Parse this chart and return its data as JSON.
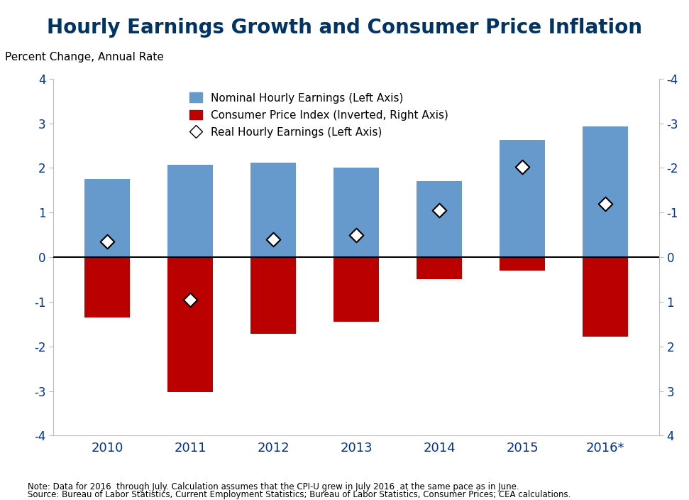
{
  "title": "Hourly Earnings Growth and Consumer Price Inflation",
  "subtitle": "Percent Change, Annual Rate",
  "years": [
    "2010",
    "2011",
    "2012",
    "2013",
    "2014",
    "2015",
    "2016*"
  ],
  "nominal_hourly_earnings": [
    1.75,
    2.07,
    2.12,
    2.0,
    1.7,
    2.62,
    2.93
  ],
  "cpi_inverted": [
    -1.35,
    -3.02,
    -1.72,
    -1.45,
    -0.5,
    -0.3,
    -1.78
  ],
  "real_hourly_earnings": [
    0.35,
    -0.95,
    0.4,
    0.5,
    1.05,
    2.02,
    1.2
  ],
  "bar_width": 0.55,
  "blue_color": "#6699CC",
  "red_color": "#BB0000",
  "ylim": [
    -4,
    4
  ],
  "yticks": [
    -4,
    -3,
    -2,
    -1,
    0,
    1,
    2,
    3,
    4
  ],
  "right_ytick_labels": [
    "4",
    "3",
    "2",
    "1",
    "0",
    "-1",
    "-2",
    "-3",
    "-4"
  ],
  "title_color": "#003366",
  "axis_label_color": "#003399",
  "tick_color": "#003399",
  "note_line1": "Note: Data for 2016  through July. Calculation assumes that the CPI-U grew in July 2016  at the same pace as in June.",
  "note_line2": "Source: Bureau of Labor Statistics, Current Employment Statistics; Bureau of Labor Statistics, Consumer Prices; CEA calculations.",
  "legend_labels": [
    "Nominal Hourly Earnings (Left Axis)",
    "Consumer Price Index (Inverted, Right Axis)",
    "Real Hourly Earnings (Left Axis)"
  ],
  "figsize": [
    9.71,
    7.04
  ],
  "dpi": 100
}
